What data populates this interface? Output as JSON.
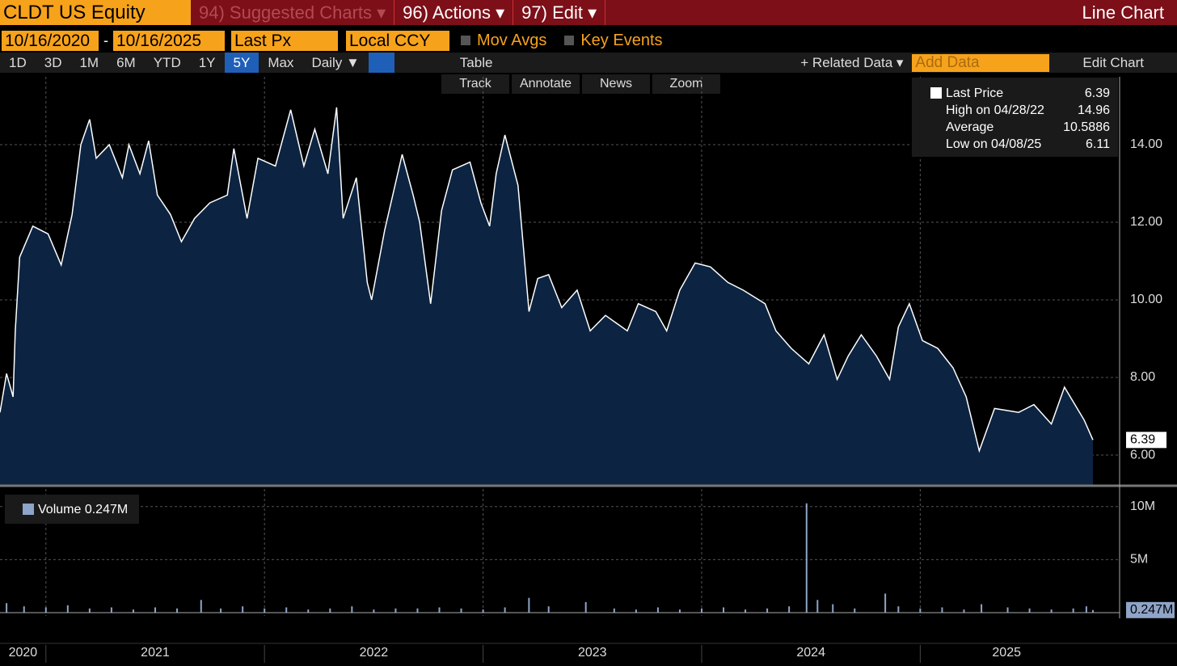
{
  "header": {
    "ticker": "CLDT US Equity",
    "menus": [
      "94) Suggested Charts ▾",
      "96) Actions ▾",
      "97) Edit ▾"
    ],
    "chart_type": "Line Chart",
    "start_date": "10/16/2020",
    "end_date": "10/16/2025",
    "field": "Last Px",
    "currency": "Local CCY",
    "mov_avgs": "Mov Avgs",
    "key_events": "Key Events",
    "periods": [
      "1D",
      "3D",
      "1M",
      "6M",
      "YTD",
      "1Y",
      "5Y",
      "Max"
    ],
    "selected_period": 6,
    "frequency": "Daily ▼",
    "table": "Table",
    "related_data": "+ Related Data ▾",
    "add_data": "Add Data",
    "edit_chart": "Edit Chart",
    "tools": [
      "Track",
      "Annotate",
      "News",
      "Zoom"
    ]
  },
  "chart_data": [
    {
      "type": "area",
      "series": [
        {
          "name": "Last Price",
          "color": "#ffffff",
          "fill": "#0c2442",
          "x": [
            2020.79,
            2020.82,
            2020.85,
            2020.86,
            2020.88,
            2020.94,
            2021.01,
            2021.07,
            2021.12,
            2021.16,
            2021.2,
            2021.23,
            2021.29,
            2021.35,
            2021.38,
            2021.43,
            2021.47,
            2021.51,
            2021.57,
            2021.62,
            2021.68,
            2021.75,
            2021.83,
            2021.86,
            2021.92,
            2021.97,
            2022.05,
            2022.12,
            2022.18,
            2022.23,
            2022.29,
            2022.33,
            2022.36,
            2022.42,
            2022.47,
            2022.49,
            2022.55,
            2022.63,
            2022.68,
            2022.71,
            2022.76,
            2022.81,
            2022.86,
            2022.94,
            2022.99,
            2023.03,
            2023.06,
            2023.1,
            2023.16,
            2023.21,
            2023.25,
            2023.3,
            2023.36,
            2023.43,
            2023.49,
            2023.56,
            2023.66,
            2023.71,
            2023.79,
            2023.84,
            2023.9,
            2023.97,
            2024.04,
            2024.12,
            2024.19,
            2024.29,
            2024.34,
            2024.41,
            2024.49,
            2024.56,
            2024.62,
            2024.67,
            2024.73,
            2024.8,
            2024.86,
            2024.9,
            2024.95,
            2025.01,
            2025.08,
            2025.15,
            2025.21,
            2025.27,
            2025.34,
            2025.45,
            2025.52,
            2025.6,
            2025.66,
            2025.75,
            2025.79
          ],
          "values": [
            7.1,
            8.1,
            7.5,
            9.2,
            11.1,
            11.9,
            11.7,
            10.9,
            12.2,
            14.0,
            14.65,
            13.65,
            14.0,
            13.15,
            14.0,
            13.25,
            14.1,
            12.7,
            12.2,
            11.5,
            12.1,
            12.5,
            12.7,
            13.9,
            12.1,
            13.65,
            13.45,
            14.9,
            13.45,
            14.4,
            13.25,
            14.96,
            12.1,
            13.15,
            10.45,
            10.0,
            11.8,
            13.75,
            12.7,
            12.0,
            9.9,
            12.3,
            13.35,
            13.55,
            12.5,
            11.9,
            13.25,
            14.25,
            12.95,
            9.7,
            10.55,
            10.65,
            9.8,
            10.25,
            9.2,
            9.6,
            9.2,
            9.9,
            9.7,
            9.2,
            10.25,
            10.95,
            10.85,
            10.45,
            10.25,
            9.9,
            9.2,
            8.75,
            8.35,
            9.1,
            7.95,
            8.55,
            9.1,
            8.55,
            7.95,
            9.3,
            9.9,
            8.95,
            8.75,
            8.25,
            7.5,
            6.11,
            7.2,
            7.1,
            7.3,
            6.8,
            7.75,
            6.9,
            6.39
          ]
        }
      ],
      "stats": [
        {
          "label": "Last Price",
          "value": 6.39
        },
        {
          "label": "High on 04/28/22",
          "value": 14.96
        },
        {
          "label": "Average",
          "value": 10.5886
        },
        {
          "label": "Low on 04/08/25",
          "value": 6.11
        }
      ],
      "xlim": [
        2020.79,
        2025.79
      ],
      "xticks": [
        {
          "value": 2020,
          "label": "2020"
        },
        {
          "value": 2021,
          "label": "2021"
        },
        {
          "value": 2022,
          "label": "2022"
        },
        {
          "value": 2023,
          "label": "2023"
        },
        {
          "value": 2024,
          "label": "2024"
        },
        {
          "value": 2025,
          "label": "2025"
        }
      ],
      "ylim": [
        5.23,
        15.75
      ],
      "yticks": [
        {
          "value": 6,
          "label": "6.00"
        },
        {
          "value": 8,
          "label": "8.00"
        },
        {
          "value": 10,
          "label": "10.00"
        },
        {
          "value": 12,
          "label": "12.00"
        },
        {
          "value": 14,
          "label": "14.00"
        }
      ],
      "grid": true
    },
    {
      "type": "bar",
      "series": [
        {
          "name": "Volume",
          "color": "#8ea4c8",
          "x": [
            2020.82,
            2020.9,
            2021.0,
            2021.1,
            2021.2,
            2021.3,
            2021.4,
            2021.5,
            2021.6,
            2021.71,
            2021.8,
            2021.9,
            2022.0,
            2022.1,
            2022.2,
            2022.3,
            2022.4,
            2022.5,
            2022.6,
            2022.7,
            2022.8,
            2022.9,
            2023.0,
            2023.1,
            2023.21,
            2023.3,
            2023.47,
            2023.6,
            2023.7,
            2023.8,
            2023.9,
            2024.0,
            2024.1,
            2024.2,
            2024.3,
            2024.4,
            2024.48,
            2024.53,
            2024.6,
            2024.7,
            2024.84,
            2024.9,
            2025.0,
            2025.1,
            2025.2,
            2025.28,
            2025.4,
            2025.5,
            2025.6,
            2025.7,
            2025.76,
            2025.79
          ],
          "values": [
            900000,
            600000,
            500000,
            700000,
            400000,
            500000,
            300000,
            500000,
            400000,
            1200000,
            400000,
            600000,
            400000,
            500000,
            300000,
            400000,
            600000,
            300000,
            400000,
            400000,
            500000,
            400000,
            300000,
            500000,
            1400000,
            600000,
            1000000,
            400000,
            300000,
            500000,
            300000,
            400000,
            500000,
            300000,
            400000,
            600000,
            10300000,
            1200000,
            800000,
            400000,
            1800000,
            600000,
            400000,
            500000,
            300000,
            800000,
            500000,
            400000,
            300000,
            400000,
            600000,
            247000
          ]
        }
      ],
      "last": {
        "value": 247000,
        "label": "0.247M"
      },
      "xlim": [
        2020.79,
        2025.79
      ],
      "ylim": [
        -300000,
        11500000
      ],
      "yticks": [
        {
          "value": 5000000,
          "label": "5M"
        },
        {
          "value": 10000000,
          "label": "10M"
        }
      ],
      "grid": true
    }
  ]
}
